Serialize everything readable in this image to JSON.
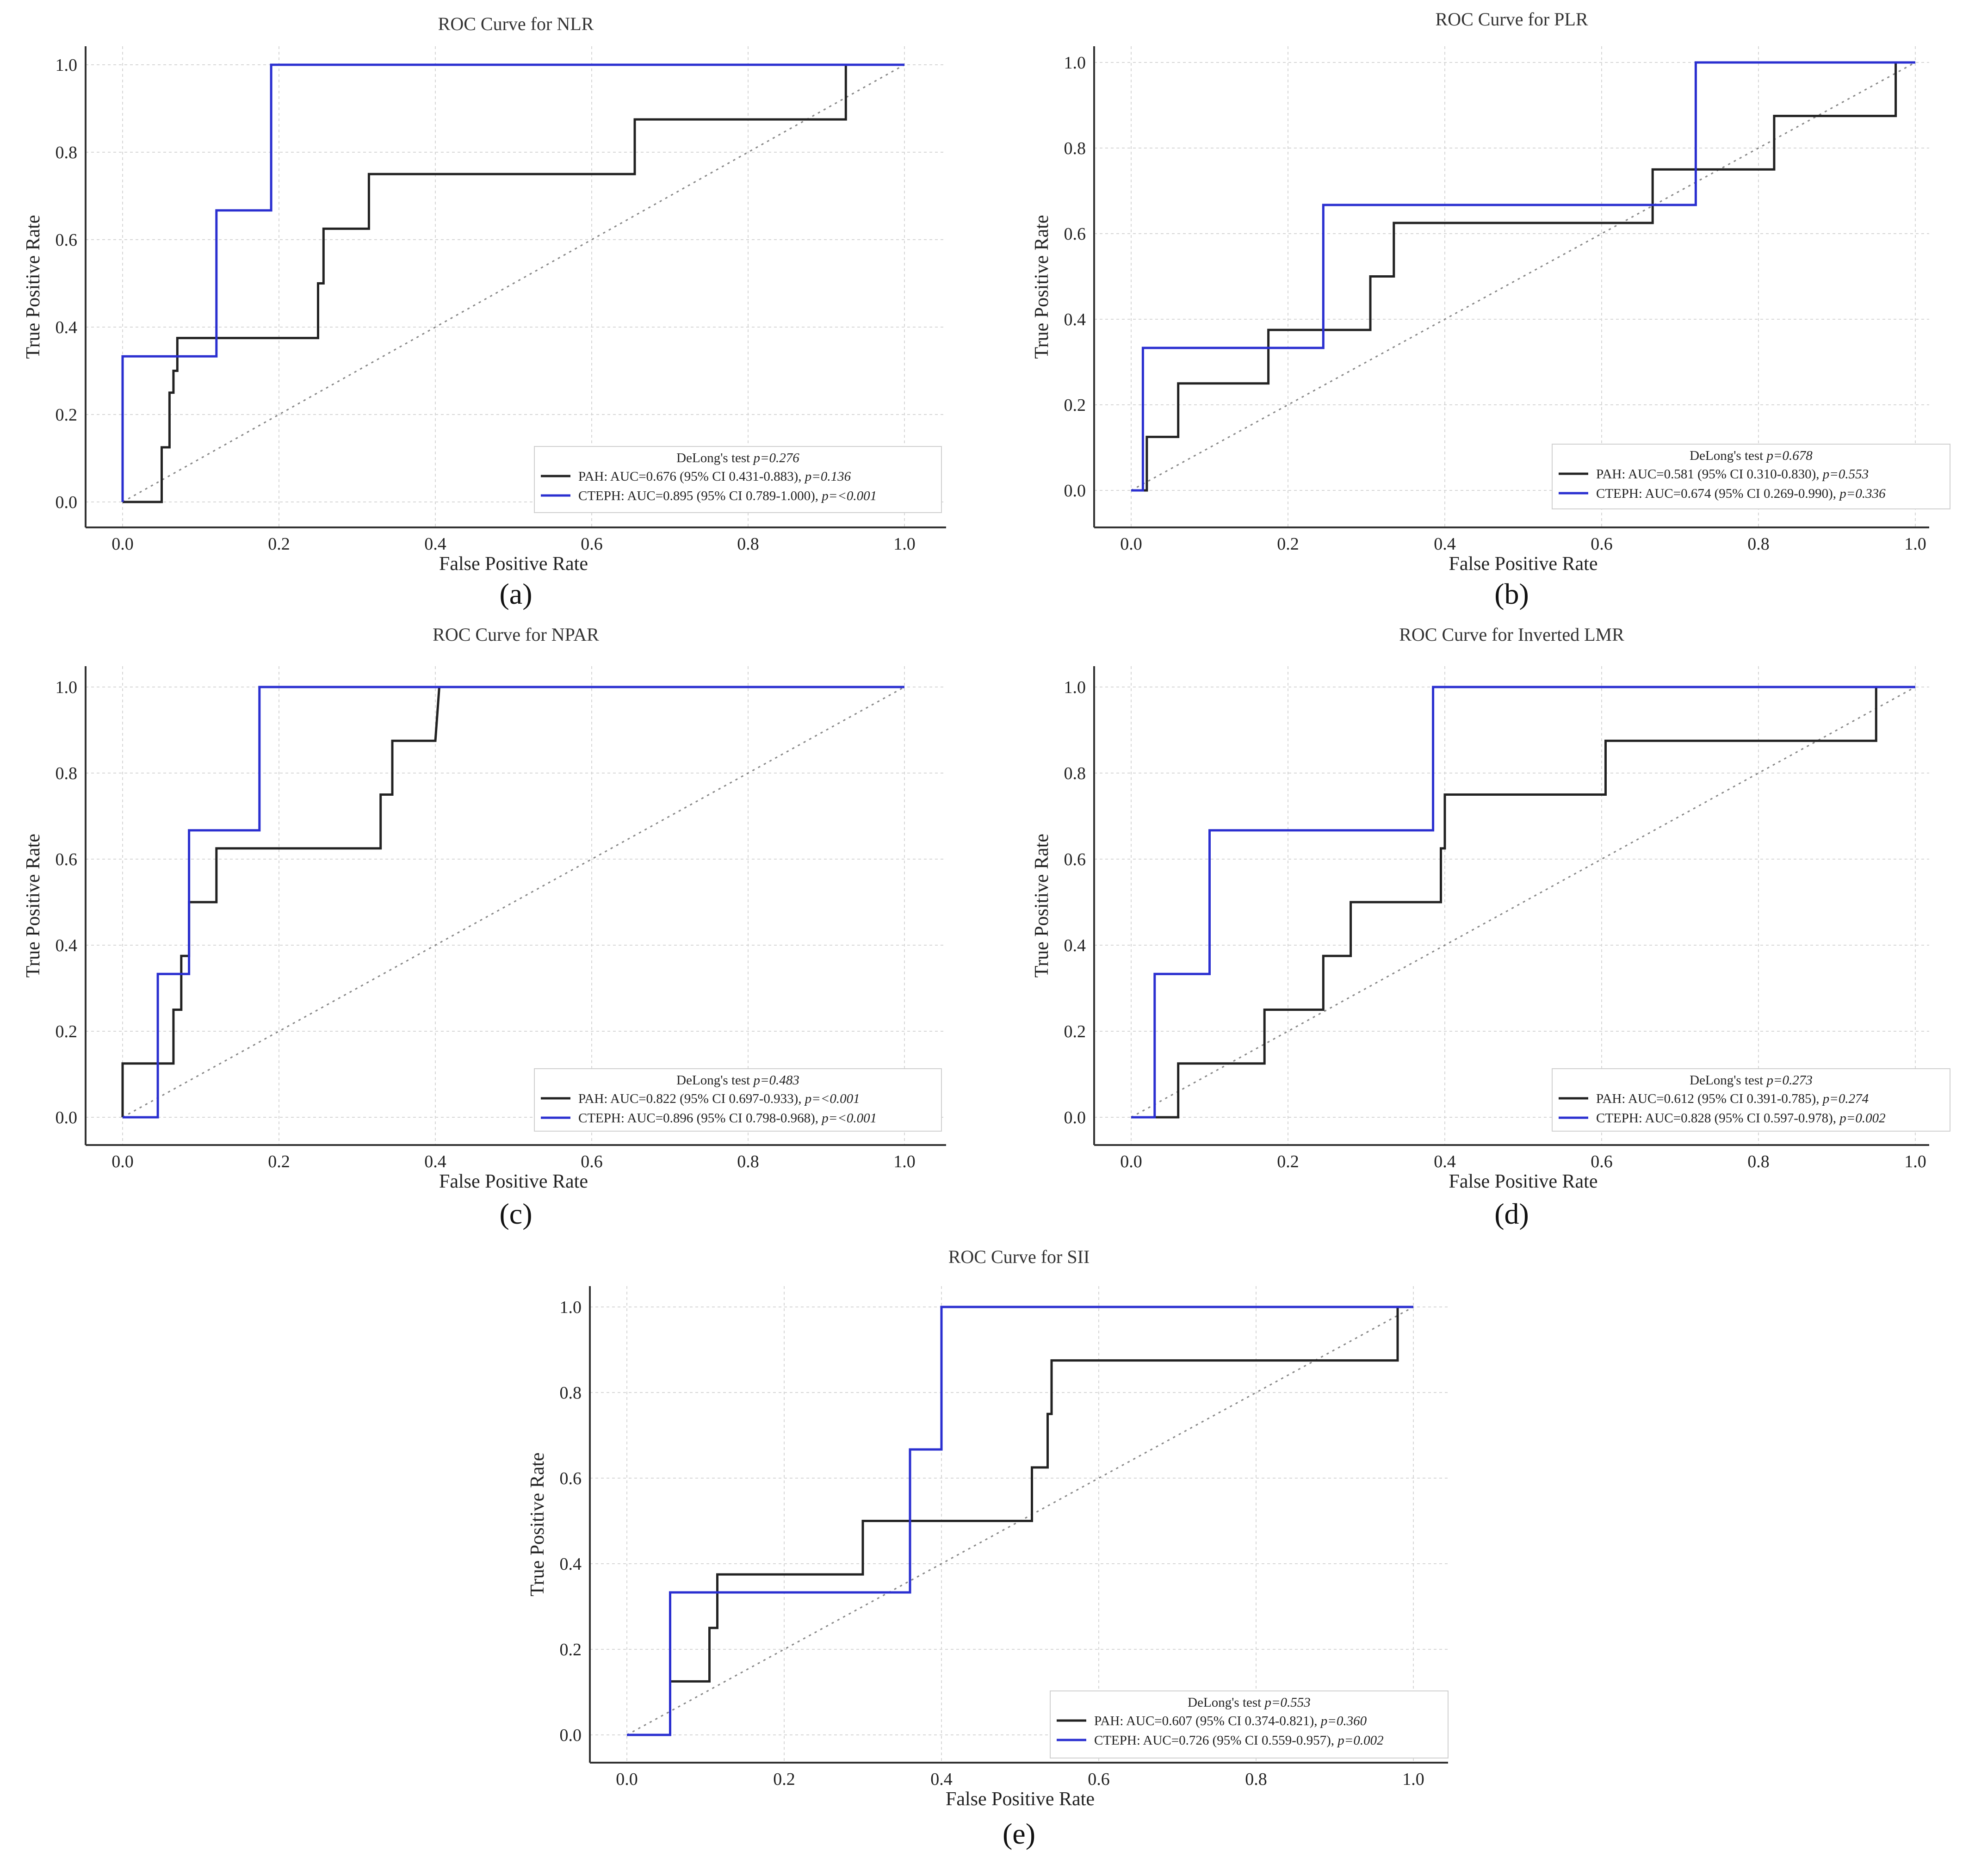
{
  "chart_data": [
    {
      "panel": "(a)",
      "type": "line",
      "title": "ROC Curve for NLR",
      "xlabel": "False Positive Rate",
      "ylabel": "True Positive Rate",
      "xlim": [
        0,
        1
      ],
      "ylim": [
        0,
        1
      ],
      "grid": true,
      "xticks": [
        "0.0",
        "0.2",
        "0.4",
        "0.6",
        "0.8",
        "1.0"
      ],
      "yticks": [
        "0.0",
        "0.2",
        "0.4",
        "0.6",
        "0.8",
        "1.0"
      ],
      "legend": {
        "placement": "bottom-right",
        "header_prefix": "DeLong's test ",
        "header_p": "p=0.276",
        "entries": [
          {
            "name": "PAH",
            "text": "PAH: AUC=0.676 (95% CI 0.431-0.883), ",
            "p": "p=0.136"
          },
          {
            "name": "CTEPH",
            "text": "CTEPH: AUC=0.895 (95% CI 0.789-1.000), ",
            "p": "p=<0.001"
          }
        ]
      },
      "series": [
        {
          "name": "PAH",
          "color": "#222222",
          "x": [
            0,
            0.05,
            0.05,
            0.06,
            0.06,
            0.065,
            0.065,
            0.07,
            0.07,
            0.25,
            0.25,
            0.257,
            0.257,
            0.315,
            0.315,
            0.655,
            0.655,
            0.925,
            0.925
          ],
          "y": [
            0,
            0,
            0.125,
            0.125,
            0.25,
            0.25,
            0.3,
            0.3,
            0.375,
            0.375,
            0.5,
            0.5,
            0.625,
            0.625,
            0.75,
            0.75,
            0.875,
            0.875,
            1.0
          ]
        },
        {
          "name": "CTEPH",
          "color": "#2a2fd0",
          "x": [
            0,
            0,
            0.12,
            0.12,
            0.19,
            0.19,
            1.0
          ],
          "y": [
            0,
            0.333,
            0.333,
            0.667,
            0.667,
            1.0,
            1.0
          ]
        }
      ]
    },
    {
      "panel": "(b)",
      "type": "line",
      "title": "ROC Curve for PLR",
      "xlabel": "False Positive Rate",
      "ylabel": "True Positive Rate",
      "xlim": [
        0,
        1
      ],
      "ylim": [
        0,
        1
      ],
      "grid": true,
      "xticks": [
        "0.0",
        "0.2",
        "0.4",
        "0.6",
        "0.8",
        "1.0"
      ],
      "yticks": [
        "0.0",
        "0.2",
        "0.4",
        "0.6",
        "0.8",
        "1.0"
      ],
      "legend": {
        "placement": "bottom-right",
        "header_prefix": "DeLong's test ",
        "header_p": "p=0.678",
        "entries": [
          {
            "name": "PAH",
            "text": "PAH: AUC=0.581 (95% CI 0.310-0.830), ",
            "p": "p=0.553"
          },
          {
            "name": "CTEPH",
            "text": "CTEPH: AUC=0.674 (95% CI 0.269-0.990), ",
            "p": "p=0.336"
          }
        ]
      },
      "series": [
        {
          "name": "PAH",
          "color": "#222222",
          "x": [
            0,
            0.02,
            0.02,
            0.06,
            0.06,
            0.175,
            0.175,
            0.305,
            0.305,
            0.335,
            0.335,
            0.665,
            0.665,
            0.82,
            0.82,
            0.975,
            0.975
          ],
          "y": [
            0,
            0,
            0.125,
            0.125,
            0.25,
            0.25,
            0.375,
            0.375,
            0.5,
            0.5,
            0.625,
            0.625,
            0.75,
            0.75,
            0.875,
            0.875,
            1.0
          ]
        },
        {
          "name": "CTEPH",
          "color": "#2a2fd0",
          "x": [
            0,
            0.015,
            0.015,
            0.245,
            0.245,
            0.72,
            0.72,
            1.0
          ],
          "y": [
            0,
            0,
            0.333,
            0.333,
            0.667,
            0.667,
            1.0,
            1.0
          ]
        }
      ]
    },
    {
      "panel": "(c)",
      "type": "line",
      "title": "ROC Curve for NPAR",
      "xlabel": "False Positive Rate",
      "ylabel": "True Positive Rate",
      "xlim": [
        0,
        1
      ],
      "ylim": [
        0,
        1
      ],
      "grid": true,
      "xticks": [
        "0.0",
        "0.2",
        "0.4",
        "0.6",
        "0.8",
        "1.0"
      ],
      "yticks": [
        "0.0",
        "0.2",
        "0.4",
        "0.6",
        "0.8",
        "1.0"
      ],
      "legend": {
        "placement": "bottom-right",
        "header_prefix": "DeLong's test ",
        "header_p": "p=0.483",
        "entries": [
          {
            "name": "PAH",
            "text": "PAH: AUC=0.822 (95% CI 0.697-0.933), ",
            "p": "p=<0.001"
          },
          {
            "name": "CTEPH",
            "text": "CTEPH: AUC=0.896 (95% CI 0.798-0.968), ",
            "p": "p=<0.001"
          }
        ]
      },
      "series": [
        {
          "name": "PAH",
          "color": "#222222",
          "x": [
            0,
            0,
            0.065,
            0.065,
            0.075,
            0.075,
            0.085,
            0.085,
            0.12,
            0.12,
            0.33,
            0.33,
            0.345,
            0.345,
            0.4,
            0.405,
            1.0
          ],
          "y": [
            0,
            0.125,
            0.125,
            0.25,
            0.25,
            0.375,
            0.375,
            0.5,
            0.5,
            0.625,
            0.625,
            0.75,
            0.75,
            0.875,
            0.875,
            1.0,
            1.0
          ]
        },
        {
          "name": "CTEPH",
          "color": "#2a2fd0",
          "x": [
            0,
            0.045,
            0.045,
            0.085,
            0.085,
            0.175,
            0.175,
            1.0
          ],
          "y": [
            0,
            0,
            0.333,
            0.333,
            0.667,
            0.667,
            1.0,
            1.0
          ]
        }
      ]
    },
    {
      "panel": "(d)",
      "type": "line",
      "title": "ROC Curve for Inverted LMR",
      "xlabel": "False Positive Rate",
      "ylabel": "True Positive Rate",
      "xlim": [
        0,
        1
      ],
      "ylim": [
        0,
        1
      ],
      "grid": true,
      "xticks": [
        "0.0",
        "0.2",
        "0.4",
        "0.6",
        "0.8",
        "1.0"
      ],
      "yticks": [
        "0.0",
        "0.2",
        "0.4",
        "0.6",
        "0.8",
        "1.0"
      ],
      "legend": {
        "placement": "bottom-right",
        "header_prefix": "DeLong's test ",
        "header_p": "p=0.273",
        "entries": [
          {
            "name": "PAH",
            "text": "PAH: AUC=0.612 (95% CI 0.391-0.785), ",
            "p": "p=0.274"
          },
          {
            "name": "CTEPH",
            "text": "CTEPH: AUC=0.828 (95% CI 0.597-0.978), ",
            "p": "p=0.002"
          }
        ]
      },
      "series": [
        {
          "name": "PAH",
          "color": "#222222",
          "x": [
            0,
            0.06,
            0.06,
            0.17,
            0.17,
            0.245,
            0.245,
            0.28,
            0.28,
            0.395,
            0.395,
            0.4,
            0.4,
            0.605,
            0.605,
            0.95,
            0.95
          ],
          "y": [
            0,
            0,
            0.125,
            0.125,
            0.25,
            0.25,
            0.375,
            0.375,
            0.5,
            0.5,
            0.625,
            0.625,
            0.75,
            0.75,
            0.875,
            0.875,
            1.0
          ]
        },
        {
          "name": "CTEPH",
          "color": "#2a2fd0",
          "x": [
            0,
            0.03,
            0.03,
            0.1,
            0.1,
            0.385,
            0.385,
            1.0
          ],
          "y": [
            0,
            0,
            0.333,
            0.333,
            0.667,
            0.667,
            1.0,
            1.0
          ]
        }
      ]
    },
    {
      "panel": "(e)",
      "type": "line",
      "title": "ROC Curve for SII",
      "xlabel": "False Positive Rate",
      "ylabel": "True Positive Rate",
      "xlim": [
        0,
        1
      ],
      "ylim": [
        0,
        1
      ],
      "grid": true,
      "xticks": [
        "0.0",
        "0.2",
        "0.4",
        "0.6",
        "0.8",
        "1.0"
      ],
      "yticks": [
        "0.0",
        "0.2",
        "0.4",
        "0.6",
        "0.8",
        "1.0"
      ],
      "legend": {
        "placement": "bottom-right",
        "header_prefix": "DeLong's test ",
        "header_p": "p=0.553",
        "entries": [
          {
            "name": "PAH",
            "text": "PAH: AUC=0.607 (95% CI 0.374-0.821), ",
            "p": "p=0.360"
          },
          {
            "name": "CTEPH",
            "text": "CTEPH: AUC=0.726 (95% CI 0.559-0.957), ",
            "p": "p=0.002"
          }
        ]
      },
      "series": [
        {
          "name": "PAH",
          "color": "#222222",
          "x": [
            0,
            0.055,
            0.055,
            0.105,
            0.105,
            0.115,
            0.115,
            0.3,
            0.3,
            0.515,
            0.515,
            0.535,
            0.535,
            0.54,
            0.54,
            0.98,
            0.98
          ],
          "y": [
            0,
            0,
            0.125,
            0.125,
            0.25,
            0.25,
            0.375,
            0.375,
            0.5,
            0.5,
            0.625,
            0.625,
            0.75,
            0.75,
            0.875,
            0.875,
            1.0
          ]
        },
        {
          "name": "CTEPH",
          "color": "#2a2fd0",
          "x": [
            0,
            0.055,
            0.055,
            0.36,
            0.36,
            0.4,
            0.4,
            1.0
          ],
          "y": [
            0,
            0,
            0.333,
            0.333,
            0.667,
            0.667,
            1.0,
            1.0
          ]
        }
      ]
    }
  ]
}
